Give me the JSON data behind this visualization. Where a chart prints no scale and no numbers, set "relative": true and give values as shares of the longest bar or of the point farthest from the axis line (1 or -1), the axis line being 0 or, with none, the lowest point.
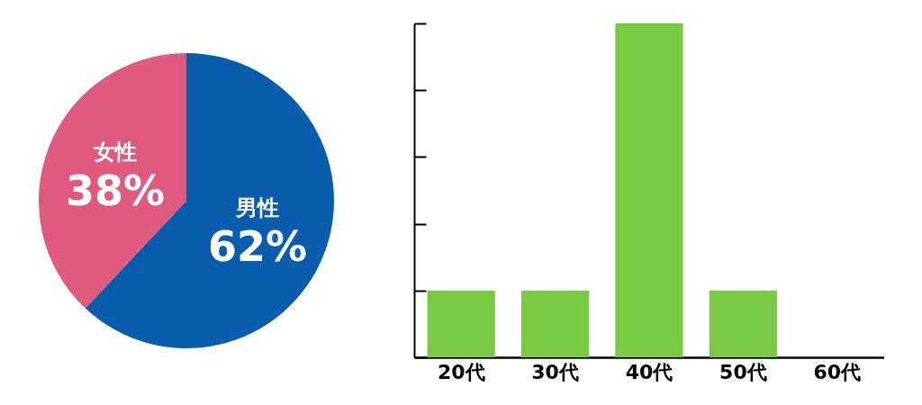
{
  "chart_data": [
    {
      "type": "pie",
      "categories": [
        "男性",
        "女性"
      ],
      "values": [
        62,
        38
      ],
      "colors": [
        "#0a5cad",
        "#df5a7c"
      ],
      "value_labels": [
        "62%",
        "38%"
      ]
    },
    {
      "type": "bar",
      "categories": [
        "20代",
        "30代",
        "40代",
        "50代",
        "60代"
      ],
      "values": [
        0.2,
        0.2,
        1,
        0.2,
        0
      ],
      "color": "#7ac943",
      "relative": true
    }
  ]
}
